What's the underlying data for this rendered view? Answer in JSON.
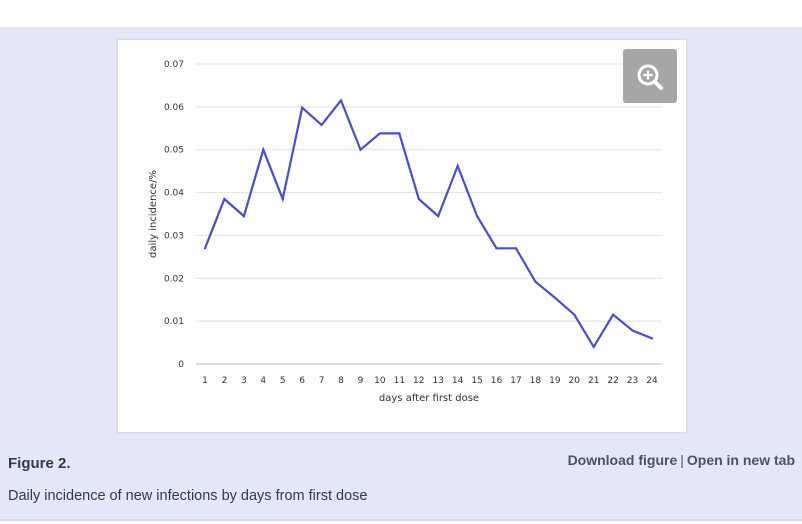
{
  "figure": {
    "label": "Figure 2.",
    "caption": "Daily incidence of new infections by days from first dose",
    "links": {
      "download": "Download figure",
      "separator": "|",
      "open_new_tab": "Open in new tab"
    },
    "zoom_icon": "zoom-in-icon"
  },
  "colors": {
    "panel_background": "#e4e7f6",
    "series_line": "#4a4fc9"
  },
  "chart_data": {
    "type": "line",
    "title": "",
    "xlabel": "days after first dose",
    "ylabel": "daily incidence/%",
    "categories": [
      "1",
      "2",
      "3",
      "4",
      "5",
      "6",
      "7",
      "8",
      "9",
      "10",
      "11",
      "12",
      "13",
      "14",
      "15",
      "16",
      "17",
      "18",
      "19",
      "20",
      "21",
      "22",
      "23",
      "24"
    ],
    "y_ticks": [
      "0",
      "0.01",
      "0.02",
      "0.03",
      "0.04",
      "0.05",
      "0.06",
      "0.07"
    ],
    "ylim": [
      0,
      0.07
    ],
    "grid": true,
    "legend": "none",
    "series": [
      {
        "values": [
          0.027,
          0.0385,
          0.0345,
          0.05,
          0.0385,
          0.0598,
          0.0558,
          0.0615,
          0.05,
          0.0538,
          0.0538,
          0.0385,
          0.0345,
          0.0462,
          0.0345,
          0.027,
          0.027,
          0.0192,
          0.0155,
          0.0115,
          0.004,
          0.0115,
          0.0078,
          0.006
        ]
      }
    ]
  }
}
